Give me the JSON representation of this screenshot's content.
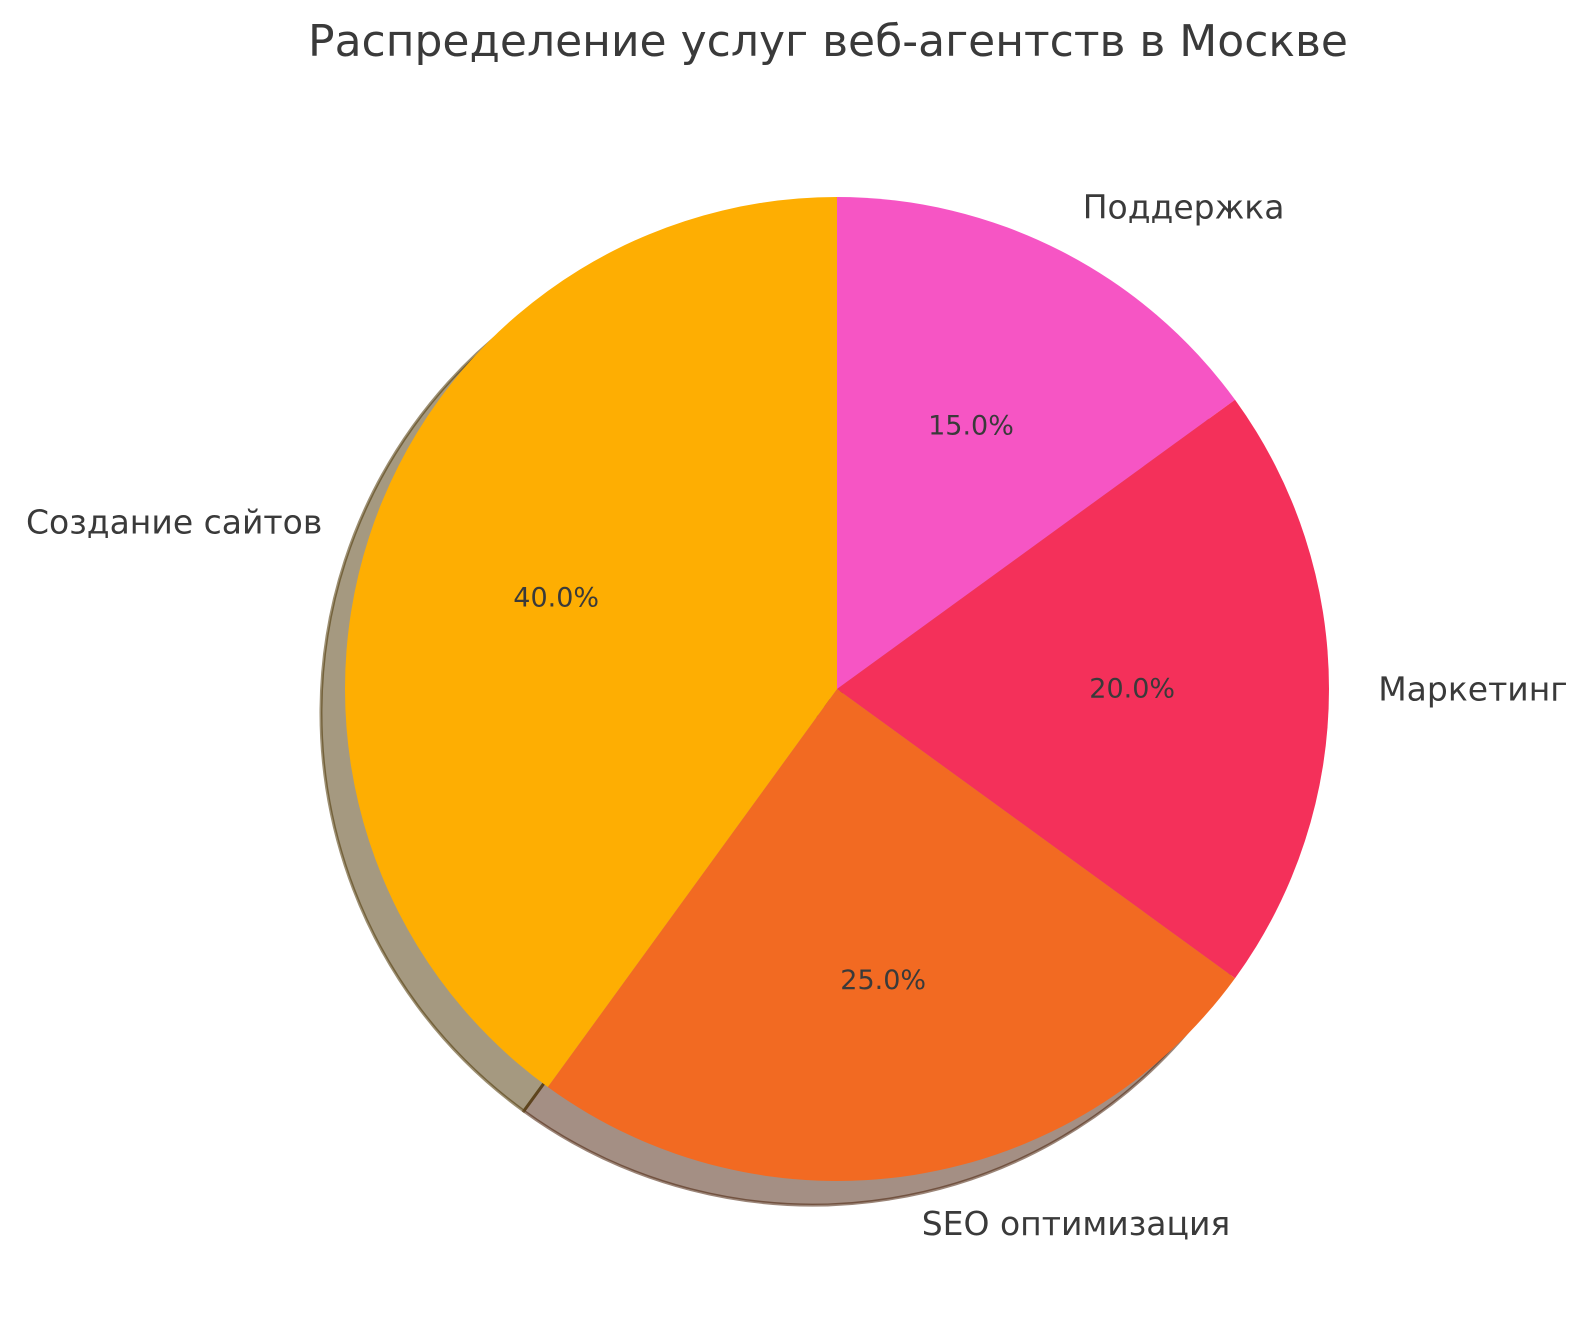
{
  "page": {
    "background": "#FFFFFF"
  },
  "chart_data": {
    "type": "pie",
    "title": "Распределение услуг веб-агентств в Москве",
    "title_color": "#3A3A3A",
    "text_color": "#3A3A3A",
    "categories": [
      "Поддержка",
      "Маркетинг",
      "SEO оптимизация",
      "Создание сайтов"
    ],
    "values": [
      15.0,
      20.0,
      25.0,
      40.0
    ],
    "percent_labels": [
      "15.0%",
      "20.0%",
      "25.0%",
      "40.0%"
    ],
    "colors": [
      "#F655C4",
      "#F4305A",
      "#F26A22",
      "#FEAE02"
    ],
    "start_angle_deg": 90,
    "direction": "clockwise",
    "shadow": true,
    "legend": "none",
    "label_distance": 1.1,
    "pct_distance": 0.6
  }
}
